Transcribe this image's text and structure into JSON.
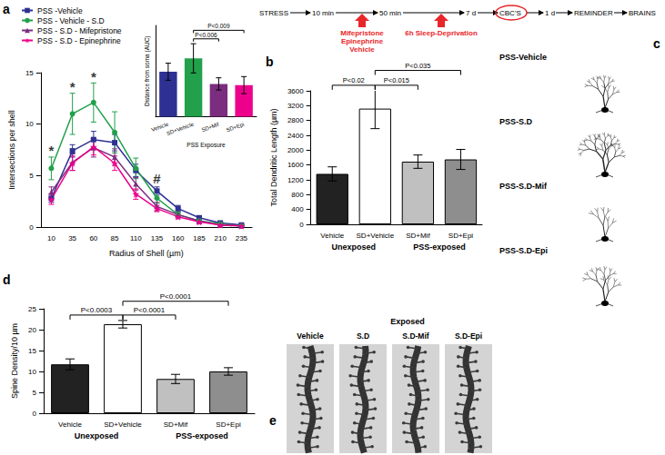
{
  "panel_labels": [
    "a",
    "b",
    "c",
    "d",
    "e"
  ],
  "timeline": {
    "steps": [
      "STRESS",
      "10 min",
      "50 min",
      "7 d",
      "CBC'S",
      "1 d",
      "REMINDER",
      "BRAINS"
    ],
    "treatment_1": [
      "Mifepristone",
      "Epinephrine",
      "Vehicle"
    ],
    "treatment_2": "6h Sleep-Deprivation"
  },
  "chart_data": [
    {
      "type": "line",
      "y_label": "Intersections per shell",
      "x_label": "Radius of Shell (µm)",
      "categories": [
        10,
        35,
        60,
        85,
        110,
        135,
        160,
        185,
        210,
        235
      ],
      "ylim": [
        0,
        15
      ],
      "yticks": [
        0,
        5,
        10,
        15
      ],
      "grid": false,
      "legend": "upper left",
      "series": [
        {
          "name": "PSS -Vehicle",
          "color": "#2e3192",
          "marker": "square",
          "values": [
            2.8,
            7.4,
            8.5,
            8.2,
            5.5,
            3.5,
            1.8,
            0.9,
            0.4,
            0.2
          ],
          "errors": [
            0.4,
            0.6,
            0.8,
            0.8,
            0.6,
            0.4,
            0.3,
            0.2,
            0.1,
            0.1
          ]
        },
        {
          "name": "PSS - Vehicle - S.D",
          "color": "#22a04b",
          "marker": "circle",
          "values": [
            5.7,
            11.0,
            12.1,
            9.2,
            5.7,
            2.8,
            1.2,
            0.6,
            0.3,
            0.1
          ],
          "errors": [
            1.1,
            2.0,
            1.9,
            2.0,
            1.0,
            0.5,
            0.3,
            0.2,
            0.1,
            0.1
          ]
        },
        {
          "name": "PSS - S.D - Mifepristone",
          "color": "#7b2d7f",
          "marker": "triangle",
          "values": [
            3.4,
            6.3,
            7.7,
            6.8,
            4.2,
            2.0,
            1.2,
            0.6,
            0.2,
            0.1
          ],
          "errors": [
            0.5,
            0.8,
            0.9,
            0.8,
            0.6,
            0.4,
            0.2,
            0.2,
            0.1,
            0.1
          ]
        },
        {
          "name": "PSS - S.D - Epinephrine",
          "color": "#ec008c",
          "marker": "star",
          "values": [
            2.7,
            6.2,
            7.8,
            6.2,
            3.2,
            1.8,
            1.0,
            0.5,
            0.2,
            0.1
          ],
          "errors": [
            0.5,
            0.7,
            0.8,
            0.7,
            0.5,
            0.3,
            0.2,
            0.2,
            0.1,
            0.1
          ]
        }
      ],
      "annotations": [
        {
          "x": 10,
          "y": 7.5,
          "text": "*"
        },
        {
          "x": 35,
          "y": 13.6,
          "text": "*"
        },
        {
          "x": 60,
          "y": 14.6,
          "text": "*"
        },
        {
          "x": 135,
          "y": 4.7,
          "text": "#"
        }
      ]
    },
    {
      "type": "bar",
      "y_label": "Distance from soma (AUC)",
      "x_label": "PSS Exposure",
      "categories": [
        "Vehicle",
        "SD+Vehicle",
        "SD+Mif",
        "SD+Epi"
      ],
      "values": [
        37,
        48,
        27,
        26
      ],
      "errors": [
        7,
        12,
        5,
        7
      ],
      "colors": [
        "#2e3192",
        "#22a04b",
        "#7b2d7f",
        "#ec008c"
      ],
      "ylim": [
        0,
        75
      ],
      "tick_labels": "x",
      "grid": false,
      "annotations": [
        {
          "from": "SD+Vehicle",
          "to": "SD+Mif",
          "y": 64,
          "text": "P<0.006"
        },
        {
          "from": "SD+Vehicle",
          "to": "SD+Epi",
          "y": 71,
          "text": "P<0.009"
        }
      ]
    },
    {
      "type": "bar",
      "y_label": "Total Dendritic Length (µm)",
      "categories": [
        "Vehicle",
        "SD+Vehicle",
        "SD+Mif",
        "SD+Epi"
      ],
      "values": [
        1360,
        3120,
        1690,
        1750
      ],
      "errors": [
        190,
        540,
        180,
        270
      ],
      "colors": [
        "#222222",
        "#ffffff",
        "#c0c0c0",
        "#8e8e8e"
      ],
      "ylim": [
        0,
        3600
      ],
      "yticks": [
        0,
        400,
        800,
        1200,
        1600,
        2000,
        2400,
        2800,
        3200,
        3600
      ],
      "grid": false,
      "groups": [
        {
          "label": "Unexposed",
          "categories": [
            "Vehicle",
            "SD+Vehicle"
          ]
        },
        {
          "label": "PSS-exposed",
          "categories": [
            "SD+Mif",
            "SD+Epi"
          ]
        }
      ],
      "annotations": [
        {
          "from": "Vehicle",
          "to": "SD+Vehicle",
          "y": 3750,
          "text": "P<0.02"
        },
        {
          "from": "SD+Vehicle",
          "to": "SD+Mif",
          "y": 3750,
          "text": "P<0.015"
        },
        {
          "from": "SD+Vehicle",
          "to": "SD+Epi",
          "y": 4150,
          "text": "P<0.035"
        }
      ]
    },
    {
      "type": "bar",
      "y_label": "Spine Density/10 µm",
      "categories": [
        "Vehicle",
        "SD+Vehicle",
        "SD+Mif",
        "SD+Epi"
      ],
      "values": [
        11.7,
        21.3,
        8.2,
        10.0
      ],
      "errors": [
        1.3,
        0.9,
        1.1,
        0.9
      ],
      "colors": [
        "#222222",
        "#ffffff",
        "#c0c0c0",
        "#8e8e8e"
      ],
      "ylim": [
        0,
        25
      ],
      "yticks": [
        0,
        5,
        10,
        15,
        20,
        25
      ],
      "grid": false,
      "groups": [
        {
          "label": "Unexposed",
          "categories": [
            "Vehicle",
            "SD+Vehicle"
          ]
        },
        {
          "label": "PSS-exposed",
          "categories": [
            "SD+Mif",
            "SD+Epi"
          ]
        }
      ],
      "annotations": [
        {
          "from": "Vehicle",
          "to": "SD+Vehicle",
          "y": 23.5,
          "text": "P<0.0003"
        },
        {
          "from": "SD+Vehicle",
          "to": "SD+Mif",
          "y": 23.5,
          "text": "P<0.0001"
        },
        {
          "from": "SD+Vehicle",
          "to": "SD+Epi",
          "y": 26.8,
          "text": "P<0.0001"
        }
      ]
    }
  ],
  "neuron_tracings": {
    "labels": [
      "PSS-Vehicle",
      "PSS-S.D",
      "PSS-S.D-Mif",
      "PSS-S.D-Epi"
    ]
  },
  "spine_images": {
    "heading": "Exposed",
    "labels": [
      "Vehicle",
      "S.D",
      "S.D-Mif",
      "S.D-Epi"
    ]
  }
}
